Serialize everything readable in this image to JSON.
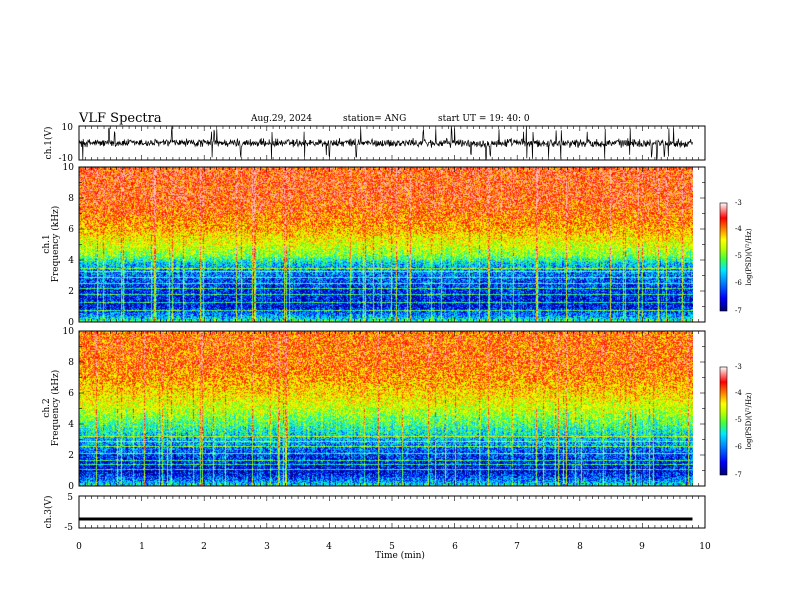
{
  "header": {
    "title": "VLF Spectra",
    "date": "Aug.29, 2024",
    "station": "station= ANG",
    "start": "start  UT =   19: 40: 0"
  },
  "chart_data": [
    {
      "id": "ch1-waveform",
      "type": "line",
      "ylabel": "ch.1(V)",
      "ylim": [
        -10,
        10
      ],
      "yticks": [
        "10",
        "-10"
      ],
      "xlim": [
        0,
        10
      ],
      "series": [
        {
          "values_description_free": true,
          "baseline": 0,
          "typical_amplitude": 2,
          "spikes_x_min": [
            0.06,
            0.48,
            0.57,
            1.48,
            2.12,
            2.16,
            2.2,
            2.58,
            3.08,
            3.6,
            3.95,
            4.0,
            4.43,
            4.5,
            5.5,
            5.7,
            5.95,
            6.0,
            6.26,
            6.5,
            6.57,
            6.71,
            7.1,
            7.15,
            7.25,
            7.5,
            7.62,
            7.7,
            8.12,
            8.4,
            8.8,
            9.15,
            9.23,
            9.35,
            9.42,
            9.5
          ],
          "line_end_x_min": 9.8
        }
      ]
    },
    {
      "id": "ch1-spectrogram",
      "type": "heatmap",
      "xlabel": "",
      "ylabel_line1": "ch.1",
      "ylabel_line2": "Frequency (kHz)",
      "ylim": [
        0,
        10
      ],
      "xlim": [
        0,
        10
      ],
      "yticks": [
        "0",
        "2",
        "4",
        "6",
        "8",
        "10"
      ],
      "data_end_x_min": 9.8,
      "colorbar": {
        "label": "log(PSD)(V²/Hz)",
        "range": [
          -7,
          -3
        ],
        "ticks": [
          "-3",
          "-4",
          "-5",
          "-6",
          "-7"
        ]
      },
      "level_by_freq_khz": [
        [
          0,
          -5.2
        ],
        [
          0.4,
          -6.0
        ],
        [
          1.0,
          -6.6
        ],
        [
          2.0,
          -6.5
        ],
        [
          3.0,
          -6.2
        ],
        [
          3.8,
          -5.8
        ],
        [
          4.3,
          -5.0
        ],
        [
          5.0,
          -4.6
        ],
        [
          6.0,
          -4.1
        ],
        [
          7.0,
          -3.8
        ],
        [
          8.0,
          -3.6
        ],
        [
          10.0,
          -3.6
        ]
      ],
      "horizontal_lines_khz": [
        0.8,
        1.3,
        1.8,
        2.2,
        2.5,
        2.9,
        3.3,
        3.5
      ],
      "colors": [
        "#00007a",
        "#0000ff",
        "#0090ff",
        "#00e8ff",
        "#40ff40",
        "#c0ff00",
        "#ffff00",
        "#ff8000",
        "#ff0000",
        "#ffffff"
      ]
    },
    {
      "id": "ch2-spectrogram",
      "type": "heatmap",
      "ylabel_line1": "ch.2",
      "ylabel_line2": "Frequency (kHz)",
      "ylim": [
        0,
        10
      ],
      "xlim": [
        0,
        10
      ],
      "yticks": [
        "0",
        "2",
        "4",
        "6",
        "8",
        "10"
      ],
      "data_end_x_min": 9.8,
      "colorbar": {
        "label": "log(PSD)(V²/Hz)",
        "range": [
          -7,
          -3
        ],
        "ticks": [
          "-3",
          "-4",
          "-5",
          "-6",
          "-7"
        ]
      },
      "level_by_freq_khz": [
        [
          0,
          -5.4
        ],
        [
          0.4,
          -6.2
        ],
        [
          1.0,
          -6.7
        ],
        [
          2.0,
          -6.4
        ],
        [
          3.0,
          -5.9
        ],
        [
          4.0,
          -5.3
        ],
        [
          5.0,
          -4.7
        ],
        [
          6.0,
          -4.3
        ],
        [
          7.0,
          -4.0
        ],
        [
          8.0,
          -3.8
        ],
        [
          10.0,
          -3.8
        ]
      ],
      "horizontal_lines_khz": [
        1.1,
        1.4,
        1.7,
        2.1,
        2.6,
        2.9,
        3.2
      ],
      "colors": [
        "#00007a",
        "#0000ff",
        "#0090ff",
        "#00e8ff",
        "#40ff40",
        "#c0ff00",
        "#ffff00",
        "#ff8000",
        "#ff0000",
        "#ffffff"
      ]
    },
    {
      "id": "ch3-waveform",
      "type": "line",
      "ylabel": "ch.3(V)",
      "ylim": [
        -5,
        5
      ],
      "yticks": [
        "5",
        "-5"
      ],
      "xlim": [
        0,
        10
      ],
      "xlabel": "Time (min)",
      "xticks": [
        "0",
        "1",
        "2",
        "3",
        "4",
        "5",
        "6",
        "7",
        "8",
        "9",
        "10"
      ],
      "series": [
        {
          "constant_value": -2.2,
          "end_x_min": 9.8
        }
      ]
    }
  ]
}
